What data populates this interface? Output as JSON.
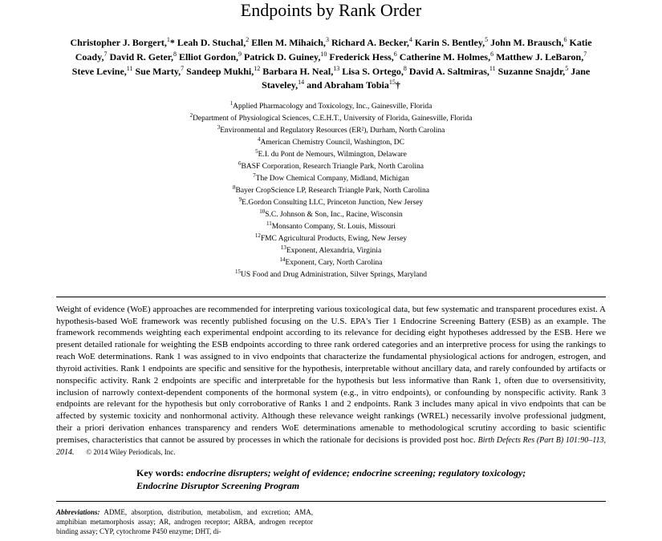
{
  "title": "Endpoints by Rank Order",
  "authors_html": "Christopher J. Borgert,<sup>1</sup>* Leah D. Stuchal,<sup>2</sup> Ellen M. Mihaich,<sup>3</sup> Richard A. Becker,<sup>4</sup> Karin S. Bentley,<sup>5</sup> John M. Brausch,<sup>6</sup> Katie Coady,<sup>7</sup> David R. Geter,<sup>8</sup> Elliot Gordon,<sup>9</sup> Patrick D. Guiney,<sup>10</sup> Frederick Hess,<sup>6</sup> Catherine M. Holmes,<sup>6</sup> Matthew J. LeBaron,<sup>7</sup> Steve Levine,<sup>11</sup> Sue Marty,<sup>7</sup> Sandeep Mukhi,<sup>12</sup> Barbara H. Neal,<sup>13</sup> Lisa S. Ortego,<sup>8</sup> David A. Saltmiras,<sup>11</sup> Suzanne Snajdr,<sup>5</sup> Jane Staveley,<sup>14</sup> and Abraham Tobia<sup>15</sup>†",
  "affiliations": [
    "Applied Pharmacology and Toxicology, Inc., Gainesville, Florida",
    "Department of Physiological Sciences, C.E.H.T., University of Florida, Gainesville, Florida",
    "Environmental and Regulatory Resources (ER²), Durham, North Carolina",
    "American Chemistry Council, Washington, DC",
    "E.I. du Pont de Nemours, Wilmington, Delaware",
    "BASF Corporation, Research Triangle Park, North Carolina",
    "The Dow Chemical Company, Midland, Michigan",
    "Bayer CropScience LP, Research Triangle Park, North Carolina",
    "E.Gordon Consulting LLC, Princeton Junction, New Jersey",
    "S.C. Johnson & Son, Inc., Racine, Wisconsin",
    "Monsanto Company, St. Louis, Missouri",
    "FMC Agricultural Products, Ewing, New Jersey",
    "Exponent, Alexandria, Virginia",
    "Exponent, Cary, North Carolina",
    "US Food and Drug Administration, Silver Springs, Maryland"
  ],
  "abstract": "Weight of evidence (WoE) approaches are recommended for interpreting various toxicological data, but few systematic and transparent procedures exist. A hypothesis-based WoE framework was recently published focusing on the U.S. EPA's Tier 1 Endocrine Screening Battery (ESB) as an example. The framework recommends weighting each experimental endpoint according to its relevance for deciding eight hypotheses addressed by the ESB. Here we present detailed rationale for weighting the ESB endpoints according to three rank ordered categories and an interpretive process for using the rankings to reach WoE determinations. Rank 1 was assigned to in vivo endpoints that characterize the fundamental physiological actions for androgen, estrogen, and thyroid activities. Rank 1 endpoints are specific and sensitive for the hypothesis, interpretable without ancillary data, and rarely confounded by artifacts or nonspecific activity. Rank 2 endpoints are specific and interpretable for the hypothesis but less informative than Rank 1, often due to oversensitivity, inclusion of narrowly context-dependent components of the hormonal system (e.g., in vitro endpoints), or confounding by nonspecific activity. Rank 3 endpoints are relevant for the hypothesis but only corroborative of Ranks 1 and 2 endpoints. Rank 3 includes many apical in vivo endpoints that can be affected by systemic toxicity and nonhormonal activity. Although these relevance weight rankings (WREL) necessarily involve professional judgment, their a priori derivation enhances transparency and renders WoE determinations amenable to methodological scrutiny according to basic scientific premises, characteristics that cannot be assured by processes in which the rationale for decisions is provided post hoc.",
  "citation": "Birth Defects Res (Part B) 101:90–113, 2014.",
  "copyright": "© 2014 Wiley Periodicals, Inc.",
  "keywords_label": "Key words:",
  "keywords": "endocrine disrupters; weight of evidence; endocrine screening; regulatory toxicology; Endocrine Disruptor Screening Program",
  "abbrev_label": "Abbreviations:",
  "abbrev_text": "ADME, absorption, distribution, metabolism, and excretion; AMA, amphibian metamorphosis assay; AR, androgen receptor; ARBA, androgen receptor binding assay; CYP, cytochrome P450 enzyme; DHT, di-"
}
